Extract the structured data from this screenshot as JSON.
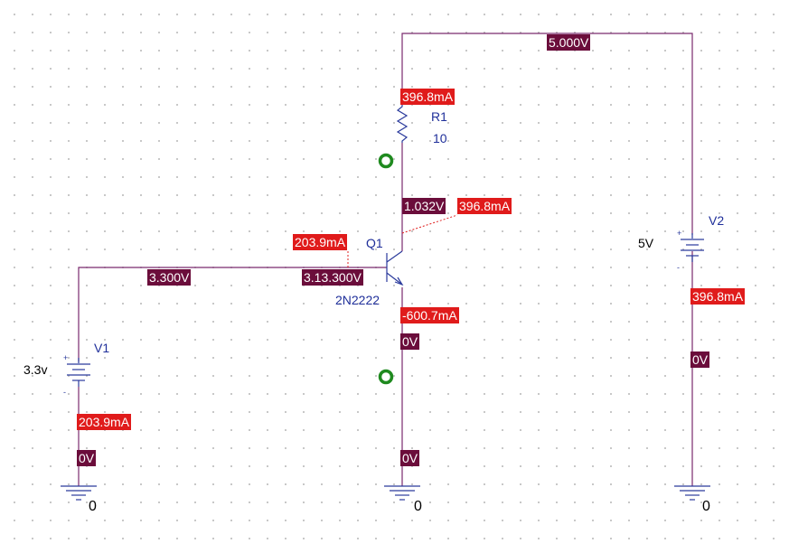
{
  "components": {
    "r1": {
      "name": "R1",
      "value": "10"
    },
    "q1": {
      "name": "Q1",
      "model": "2N2222"
    },
    "v1": {
      "name": "V1",
      "value": "3.3v"
    },
    "v2": {
      "name": "V2",
      "value": "5V"
    },
    "grounds": [
      "0",
      "0",
      "0"
    ],
    "polarity": {
      "plus": "+",
      "minus": "-"
    }
  },
  "markers": {
    "v_top": "5.000V",
    "i_r1": "396.8mA",
    "v_collector": "1.032V",
    "i_collector": "396.8mA",
    "i_base": "203.9mA",
    "v_base_wire": "3.300V",
    "v_base": "3.13.300V",
    "i_emitter": "-600.7mA",
    "v_emitter": "0V",
    "v_emitter_gnd": "0V",
    "i_v1": "203.9mA",
    "v_v1_gnd": "0V",
    "i_v2": "396.8mA",
    "v_v2_gnd": "0V"
  },
  "colors": {
    "wire": "#7a2a6e",
    "component": "#2a3a9c",
    "voltage_marker": "#6b0d3b",
    "current_marker": "#e01b1b",
    "node": "#1f8a1f"
  }
}
